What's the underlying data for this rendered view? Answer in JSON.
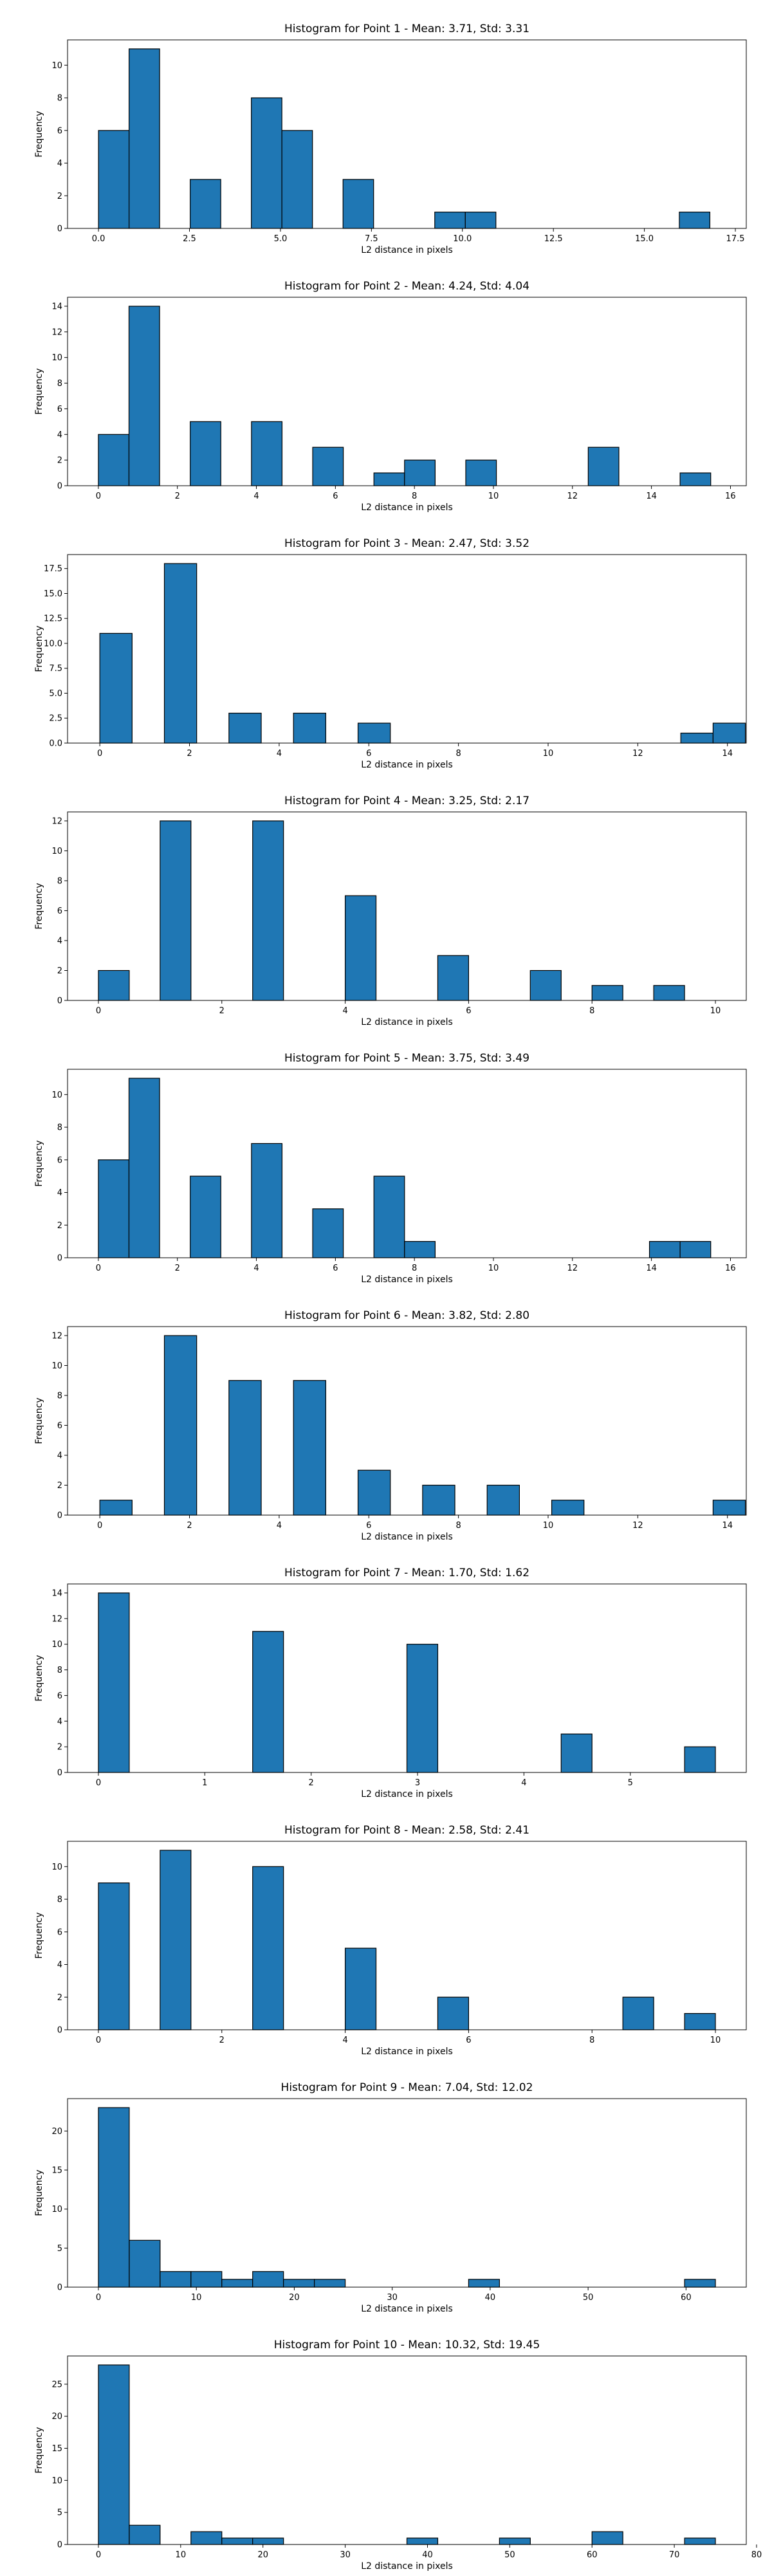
{
  "figure": {
    "bar_color": "#1f77b4",
    "edge_color": "#000000"
  },
  "chart_data": [
    {
      "type": "bar",
      "title": "Histogram for Point 1 - Mean: 3.71, Std: 3.31",
      "xlabel": "L2 distance in pixels",
      "ylabel": "Frequency",
      "xlim": [
        -0.85,
        17.8
      ],
      "ylim": [
        0,
        11.55
      ],
      "xticks": [
        0.0,
        2.5,
        5.0,
        7.5,
        10.0,
        12.5,
        15.0,
        17.5
      ],
      "xtick_labels": [
        "0.0",
        "2.5",
        "5.0",
        "7.5",
        "10.0",
        "12.5",
        "15.0",
        "17.5"
      ],
      "yticks": [
        0,
        2,
        4,
        6,
        8,
        10
      ],
      "ytick_labels": [
        "0",
        "2",
        "4",
        "6",
        "8",
        "10"
      ],
      "bin_edges": [
        0,
        0.84,
        1.68,
        2.52,
        3.36,
        4.2,
        5.04,
        5.88,
        6.72,
        7.56,
        8.4,
        9.24,
        10.08,
        10.92,
        11.76,
        12.6,
        13.44,
        14.28,
        15.12,
        15.96,
        16.8
      ],
      "counts": [
        6,
        11,
        0,
        3,
        0,
        8,
        6,
        0,
        3,
        0,
        0,
        1,
        1,
        0,
        0,
        0,
        0,
        0,
        0,
        1
      ]
    },
    {
      "type": "bar",
      "title": "Histogram for Point 2 - Mean: 4.24, Std: 4.04",
      "xlabel": "L2 distance in pixels",
      "ylabel": "Frequency",
      "xlim": [
        -0.78,
        16.4
      ],
      "ylim": [
        0,
        14.7
      ],
      "xticks": [
        0,
        2,
        4,
        6,
        8,
        10,
        12,
        14,
        16
      ],
      "xtick_labels": [
        "0",
        "2",
        "4",
        "6",
        "8",
        "10",
        "12",
        "14",
        "16"
      ],
      "yticks": [
        0,
        2,
        4,
        6,
        8,
        10,
        12,
        14
      ],
      "ytick_labels": [
        "0",
        "2",
        "4",
        "6",
        "8",
        "10",
        "12",
        "14"
      ],
      "bin_edges": [
        0,
        0.775,
        1.55,
        2.325,
        3.1,
        3.875,
        4.65,
        5.425,
        6.2,
        6.975,
        7.75,
        8.525,
        9.3,
        10.075,
        10.85,
        11.625,
        12.4,
        13.175,
        13.95,
        14.725,
        15.5
      ],
      "counts": [
        4,
        14,
        0,
        5,
        0,
        5,
        0,
        3,
        0,
        1,
        2,
        0,
        2,
        0,
        0,
        0,
        3,
        0,
        0,
        1
      ]
    },
    {
      "type": "bar",
      "title": "Histogram for Point 3 - Mean: 2.47, Std: 3.52",
      "xlabel": "L2 distance in pixels",
      "ylabel": "Frequency",
      "xlim": [
        -0.72,
        14.42
      ],
      "ylim": [
        0,
        18.9
      ],
      "xticks": [
        0,
        2,
        4,
        6,
        8,
        10,
        12,
        14
      ],
      "xtick_labels": [
        "0",
        "2",
        "4",
        "6",
        "8",
        "10",
        "12",
        "14"
      ],
      "yticks": [
        0,
        2.5,
        5,
        7.5,
        10,
        12.5,
        15,
        17.5
      ],
      "ytick_labels": [
        "0.0",
        "2.5",
        "5.0",
        "7.5",
        "10.0",
        "12.5",
        "15.0",
        "17.5"
      ],
      "bin_edges": [
        0,
        0.72,
        1.44,
        2.16,
        2.88,
        3.6,
        4.32,
        5.04,
        5.76,
        6.48,
        7.2,
        7.92,
        8.64,
        9.36,
        10.08,
        10.8,
        11.52,
        12.24,
        12.96,
        13.68,
        14.4
      ],
      "counts": [
        11,
        0,
        18,
        0,
        3,
        0,
        3,
        0,
        2,
        0,
        0,
        0,
        0,
        0,
        0,
        0,
        0,
        0,
        1,
        2
      ]
    },
    {
      "type": "bar",
      "title": "Histogram for Point 4 - Mean: 3.25, Std: 2.17",
      "xlabel": "L2 distance in pixels",
      "ylabel": "Frequency",
      "xlim": [
        -0.5,
        10.5
      ],
      "ylim": [
        0,
        12.6
      ],
      "xticks": [
        0,
        2,
        4,
        6,
        8,
        10
      ],
      "xtick_labels": [
        "0",
        "2",
        "4",
        "6",
        "8",
        "10"
      ],
      "yticks": [
        0,
        2,
        4,
        6,
        8,
        10,
        12
      ],
      "ytick_labels": [
        "0",
        "2",
        "4",
        "6",
        "8",
        "10",
        "12"
      ],
      "bin_edges": [
        0,
        0.5,
        1,
        1.5,
        2,
        2.5,
        3,
        3.5,
        4,
        4.5,
        5,
        5.5,
        6,
        6.5,
        7,
        7.5,
        8,
        8.5,
        9,
        9.5,
        10
      ],
      "counts": [
        2,
        0,
        12,
        0,
        0,
        12,
        0,
        0,
        7,
        0,
        0,
        3,
        0,
        0,
        2,
        0,
        1,
        0,
        1,
        0
      ]
    },
    {
      "type": "bar",
      "title": "Histogram for Point 5 - Mean: 3.75, Std: 3.49",
      "xlabel": "L2 distance in pixels",
      "ylabel": "Frequency",
      "xlim": [
        -0.78,
        16.4
      ],
      "ylim": [
        0,
        11.55
      ],
      "xticks": [
        0,
        2,
        4,
        6,
        8,
        10,
        12,
        14,
        16
      ],
      "xtick_labels": [
        "0",
        "2",
        "4",
        "6",
        "8",
        "10",
        "12",
        "14",
        "16"
      ],
      "yticks": [
        0,
        2,
        4,
        6,
        8,
        10
      ],
      "ytick_labels": [
        "0",
        "2",
        "4",
        "6",
        "8",
        "10"
      ],
      "bin_edges": [
        0,
        0.775,
        1.55,
        2.325,
        3.1,
        3.875,
        4.65,
        5.425,
        6.2,
        6.975,
        7.75,
        8.525,
        9.3,
        10.075,
        10.85,
        11.625,
        12.4,
        13.175,
        13.95,
        14.725,
        15.5
      ],
      "counts": [
        6,
        11,
        0,
        5,
        0,
        7,
        0,
        3,
        0,
        5,
        1,
        0,
        0,
        0,
        0,
        0,
        0,
        0,
        1,
        1
      ]
    },
    {
      "type": "bar",
      "title": "Histogram for Point 6 - Mean: 3.82, Std: 2.80",
      "xlabel": "L2 distance in pixels",
      "ylabel": "Frequency",
      "xlim": [
        -0.72,
        14.42
      ],
      "ylim": [
        0,
        12.6
      ],
      "xticks": [
        0,
        2,
        4,
        6,
        8,
        10,
        12,
        14
      ],
      "xtick_labels": [
        "0",
        "2",
        "4",
        "6",
        "8",
        "10",
        "12",
        "14"
      ],
      "yticks": [
        0,
        2,
        4,
        6,
        8,
        10,
        12
      ],
      "ytick_labels": [
        "0",
        "2",
        "4",
        "6",
        "8",
        "10",
        "12"
      ],
      "bin_edges": [
        0,
        0.72,
        1.44,
        2.16,
        2.88,
        3.6,
        4.32,
        5.04,
        5.76,
        6.48,
        7.2,
        7.92,
        8.64,
        9.36,
        10.08,
        10.8,
        11.52,
        12.24,
        12.96,
        13.68,
        14.4
      ],
      "counts": [
        1,
        0,
        12,
        0,
        9,
        0,
        9,
        0,
        3,
        0,
        2,
        0,
        2,
        0,
        1,
        0,
        0,
        0,
        0,
        1
      ]
    },
    {
      "type": "bar",
      "title": "Histogram for Point 7 - Mean: 1.70, Std: 1.62",
      "xlabel": "L2 distance in pixels",
      "ylabel": "Frequency",
      "xlim": [
        -0.29,
        6.09
      ],
      "ylim": [
        0,
        14.7
      ],
      "xticks": [
        0,
        1,
        2,
        3,
        4,
        5
      ],
      "xtick_labels": [
        "0",
        "1",
        "2",
        "3",
        "4",
        "5"
      ],
      "yticks": [
        0,
        2,
        4,
        6,
        8,
        10,
        12,
        14
      ],
      "ytick_labels": [
        "0",
        "2",
        "4",
        "6",
        "8",
        "10",
        "12",
        "14"
      ],
      "bin_edges": [
        0,
        0.29,
        0.58,
        0.87,
        1.16,
        1.45,
        1.74,
        2.03,
        2.32,
        2.61,
        2.9,
        3.19,
        3.48,
        3.77,
        4.06,
        4.35,
        4.64,
        4.93,
        5.22,
        5.51,
        5.8
      ],
      "counts": [
        14,
        0,
        0,
        0,
        0,
        11,
        0,
        0,
        0,
        0,
        10,
        0,
        0,
        0,
        0,
        3,
        0,
        0,
        0,
        2
      ]
    },
    {
      "type": "bar",
      "title": "Histogram for Point 8 - Mean: 2.58, Std: 2.41",
      "xlabel": "L2 distance in pixels",
      "ylabel": "Frequency",
      "xlim": [
        -0.5,
        10.5
      ],
      "ylim": [
        0,
        11.55
      ],
      "xticks": [
        0,
        2,
        4,
        6,
        8,
        10
      ],
      "xtick_labels": [
        "0",
        "2",
        "4",
        "6",
        "8",
        "10"
      ],
      "yticks": [
        0,
        2,
        4,
        6,
        8,
        10
      ],
      "ytick_labels": [
        "0",
        "2",
        "4",
        "6",
        "8",
        "10"
      ],
      "bin_edges": [
        0,
        0.5,
        1,
        1.5,
        2,
        2.5,
        3,
        3.5,
        4,
        4.5,
        5,
        5.5,
        6,
        6.5,
        7,
        7.5,
        8,
        8.5,
        9,
        9.5,
        10
      ],
      "counts": [
        9,
        0,
        11,
        0,
        0,
        10,
        0,
        0,
        5,
        0,
        0,
        2,
        0,
        0,
        0,
        0,
        0,
        2,
        0,
        1
      ]
    },
    {
      "type": "bar",
      "title": "Histogram for Point 9 - Mean: 7.04, Std: 12.02",
      "xlabel": "L2 distance in pixels",
      "ylabel": "Frequency",
      "xlim": [
        -3.15,
        66.15
      ],
      "ylim": [
        0,
        24.15
      ],
      "xticks": [
        0,
        10,
        20,
        30,
        40,
        50,
        60
      ],
      "xtick_labels": [
        "0",
        "10",
        "20",
        "30",
        "40",
        "50",
        "60"
      ],
      "yticks": [
        0,
        5,
        10,
        15,
        20
      ],
      "ytick_labels": [
        "0",
        "5",
        "10",
        "15",
        "20"
      ],
      "bin_edges": [
        0,
        3.15,
        6.3,
        9.45,
        12.6,
        15.75,
        18.9,
        22.05,
        25.2,
        28.35,
        31.5,
        34.65,
        37.8,
        40.95,
        44.1,
        47.25,
        50.4,
        53.55,
        56.7,
        59.85,
        63
      ],
      "counts": [
        23,
        6,
        2,
        2,
        1,
        2,
        1,
        1,
        0,
        0,
        0,
        0,
        1,
        0,
        0,
        0,
        0,
        0,
        0,
        1
      ]
    },
    {
      "type": "bar",
      "title": "Histogram for Point 10 - Mean: 10.32, Std: 19.45",
      "xlabel": "L2 distance in pixels",
      "ylabel": "Frequency",
      "xlim": [
        -3.75,
        78.75
      ],
      "ylim": [
        0,
        29.4
      ],
      "xticks": [
        0,
        10,
        20,
        30,
        40,
        50,
        60,
        70,
        80
      ],
      "xtick_labels": [
        "0",
        "10",
        "20",
        "30",
        "40",
        "50",
        "60",
        "70",
        "80"
      ],
      "yticks": [
        0,
        5,
        10,
        15,
        20,
        25
      ],
      "ytick_labels": [
        "0",
        "5",
        "10",
        "15",
        "20",
        "25"
      ],
      "bin_edges": [
        0,
        3.75,
        7.5,
        11.25,
        15,
        18.75,
        22.5,
        26.25,
        30,
        33.75,
        37.5,
        41.25,
        45,
        48.75,
        52.5,
        56.25,
        60,
        63.75,
        67.5,
        71.25,
        75
      ],
      "counts": [
        28,
        3,
        0,
        2,
        1,
        1,
        0,
        0,
        0,
        0,
        1,
        0,
        0,
        1,
        0,
        0,
        2,
        0,
        0,
        1
      ]
    }
  ]
}
